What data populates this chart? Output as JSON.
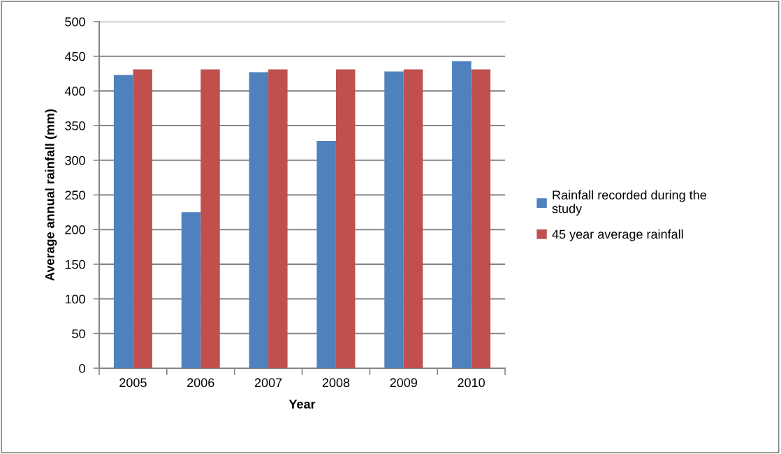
{
  "chart_data": {
    "type": "bar",
    "xlabel": "Year",
    "ylabel": "Average annual rainfall (mm)",
    "categories": [
      "2005",
      "2006",
      "2007",
      "2008",
      "2009",
      "2010"
    ],
    "series": [
      {
        "name": "Rainfall recorded during the study",
        "color": "#4f81bd",
        "values": [
          423,
          225,
          427,
          328,
          428,
          443
        ]
      },
      {
        "name": "45 year average rainfall",
        "color": "#c0504d",
        "values": [
          431,
          431,
          431,
          431,
          431,
          431
        ]
      }
    ],
    "ylim": [
      0,
      500
    ],
    "yticks": [
      0,
      50,
      100,
      150,
      200,
      250,
      300,
      350,
      400,
      450,
      500
    ],
    "grid": "y",
    "legend": "right"
  }
}
